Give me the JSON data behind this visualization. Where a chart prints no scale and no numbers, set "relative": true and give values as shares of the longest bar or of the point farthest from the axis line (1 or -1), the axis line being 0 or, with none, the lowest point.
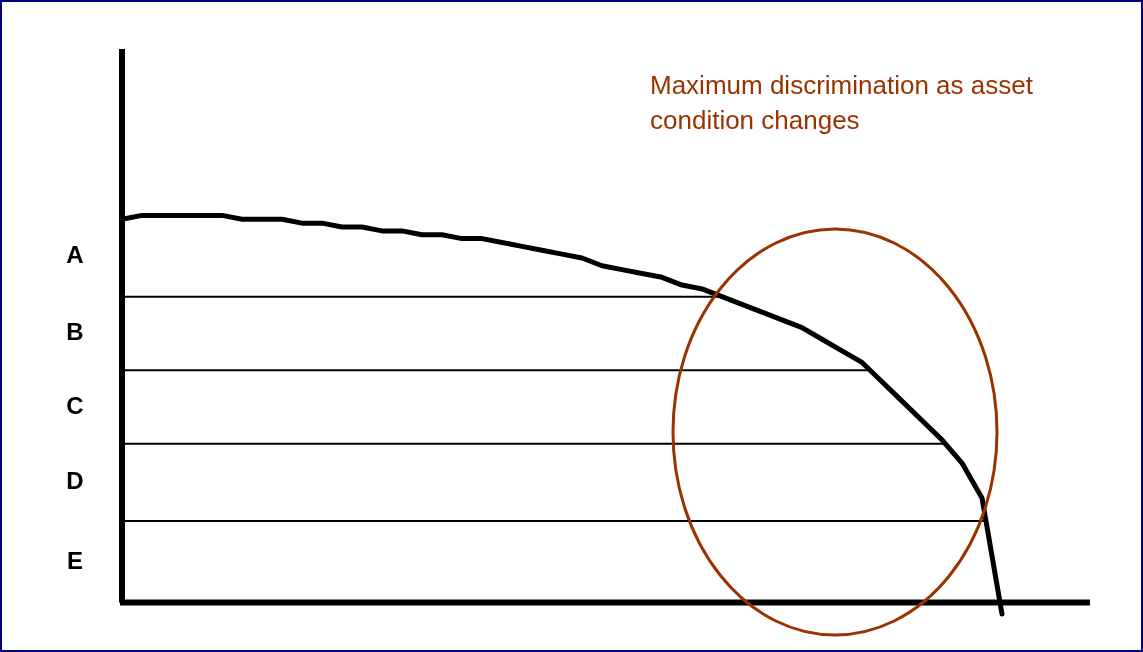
{
  "chart_data": {
    "type": "line",
    "relative": true,
    "categories": [
      null,
      null,
      null,
      null,
      null,
      null,
      null,
      null,
      null,
      null,
      null,
      null,
      null,
      null,
      null,
      null,
      null,
      null,
      null,
      null,
      null,
      null,
      null,
      null,
      null,
      null,
      null,
      null,
      null,
      null,
      null,
      null,
      null,
      null,
      null,
      null,
      null,
      null,
      null,
      null,
      null,
      null,
      null,
      null,
      null
    ],
    "series": [
      {
        "color": "#000000",
        "values": [
          0.99,
          1.0,
          1.0,
          1.0,
          1.0,
          1.0,
          0.99,
          0.99,
          0.99,
          0.98,
          0.98,
          0.97,
          0.97,
          0.96,
          0.96,
          0.95,
          0.95,
          0.94,
          0.94,
          0.93,
          0.92,
          0.91,
          0.9,
          0.89,
          0.87,
          0.86,
          0.85,
          0.84,
          0.82,
          0.81,
          0.79,
          0.77,
          0.75,
          0.73,
          0.71,
          0.68,
          0.65,
          0.62,
          0.57,
          0.52,
          0.47,
          0.42,
          0.36,
          0.27,
          -0.03
        ]
      }
    ],
    "ref_lines": [
      {
        "axis": "y",
        "value": 0.79
      },
      {
        "axis": "y",
        "value": 0.6
      },
      {
        "axis": "y",
        "value": 0.41
      },
      {
        "axis": "y",
        "value": 0.21
      }
    ],
    "annotations": [
      "Maximum discrimination as asset condition changes",
      "A",
      "B",
      "C",
      "D",
      "E"
    ],
    "grid": false,
    "marker": "none",
    "line_style": "solid"
  }
}
